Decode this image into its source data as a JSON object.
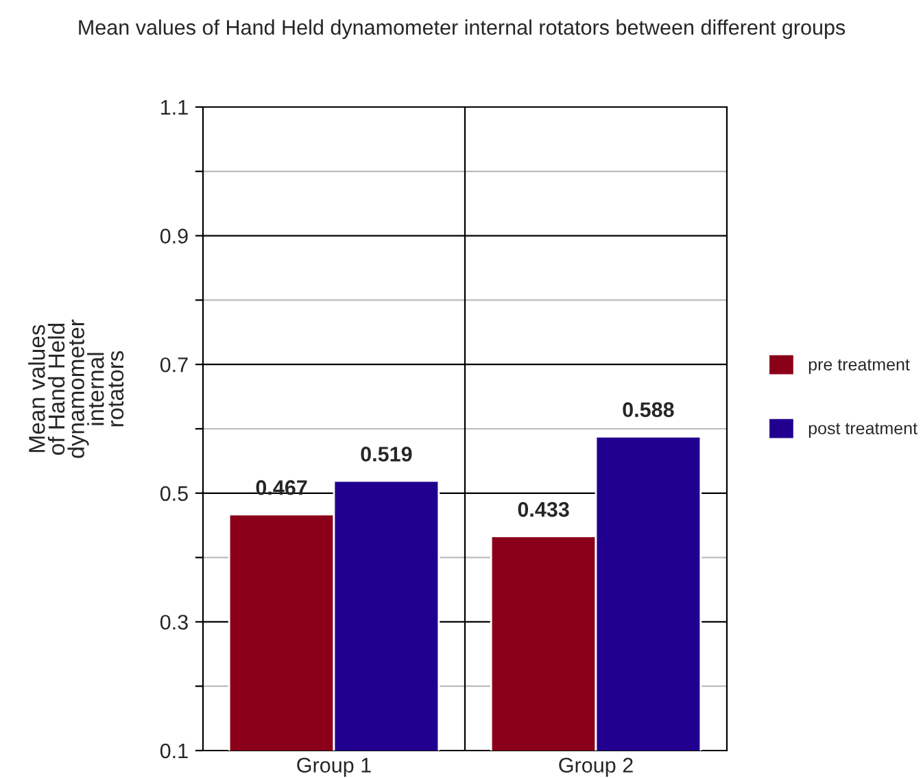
{
  "chart_data": {
    "type": "bar",
    "title": "Mean values of Hand Held dynamometer internal rotators between different groups",
    "ylabel": "Mean values\nof Hand Held\ndynamometer\ninternal\nrotators",
    "categories": [
      "Group 1",
      "Group 2"
    ],
    "series": [
      {
        "name": "pre treatment",
        "color": "#8b0019",
        "values": [
          0.467,
          0.433
        ]
      },
      {
        "name": "post treatment",
        "color": "#22008f",
        "values": [
          0.519,
          0.588
        ]
      }
    ],
    "ylim": [
      0.1,
      1.1
    ],
    "yticks": [
      0.1,
      {
        "value": 0.2,
        "label": null
      },
      0.3,
      {
        "value": 0.4,
        "label": null
      },
      0.5,
      {
        "value": 0.6,
        "label": null
      },
      0.7,
      {
        "value": 0.8,
        "label": null
      },
      0.9,
      {
        "value": 1.0,
        "label": null
      },
      1.1
    ],
    "grid": true,
    "legend": "right",
    "data_labels": true
  }
}
